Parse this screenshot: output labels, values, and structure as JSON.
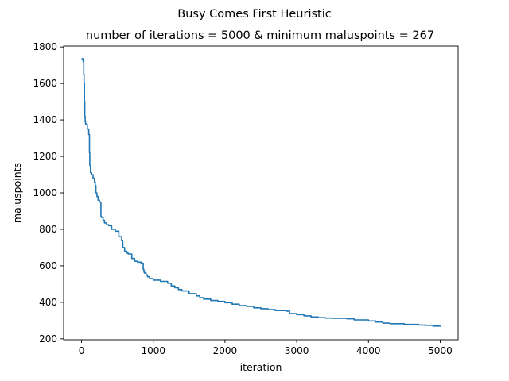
{
  "chart_data": {
    "type": "line",
    "suptitle": "Busy Comes First Heuristic",
    "title": "number of iterations = 5000 & minimum maluspoints = 267",
    "xlabel": "iteration",
    "ylabel": "maluspoints",
    "xlim": [
      -250,
      5250
    ],
    "ylim": [
      195,
      1805
    ],
    "xticks": [
      0,
      1000,
      2000,
      3000,
      4000,
      5000
    ],
    "yticks": [
      200,
      400,
      600,
      800,
      1000,
      1200,
      1400,
      1600,
      1800
    ],
    "grid": false,
    "line_color": "#1f77b4",
    "series": [
      {
        "x": [
          0,
          20,
          22,
          30,
          35,
          40,
          45,
          50,
          55,
          60,
          80,
          100,
          110,
          115,
          125,
          140,
          160,
          180,
          190,
          200,
          215,
          230,
          250,
          270,
          280,
          300,
          320,
          350,
          380,
          420,
          470,
          520,
          560,
          575,
          600,
          630,
          650,
          700,
          740,
          780,
          830,
          860,
          870,
          880,
          900,
          920,
          950,
          1000,
          1100,
          1200,
          1250,
          1300,
          1350,
          1400,
          1500,
          1600,
          1650,
          1700,
          1800,
          1900,
          2000,
          2100,
          2200,
          2300,
          2400,
          2500,
          2600,
          2700,
          2850,
          2900,
          3000,
          3100,
          3200,
          3300,
          3400,
          3500,
          3700,
          3800,
          4000,
          4100,
          4200,
          4300,
          4500,
          4700,
          4800,
          4900,
          5000
        ],
        "values": [
          1735,
          1735,
          1720,
          1650,
          1600,
          1500,
          1420,
          1390,
          1380,
          1375,
          1350,
          1320,
          1220,
          1150,
          1110,
          1100,
          1080,
          1060,
          1040,
          1000,
          980,
          960,
          950,
          870,
          865,
          850,
          835,
          825,
          820,
          800,
          790,
          760,
          740,
          700,
          680,
          670,
          665,
          640,
          625,
          620,
          615,
          580,
          565,
          560,
          550,
          540,
          530,
          522,
          515,
          505,
          490,
          480,
          470,
          462,
          448,
          435,
          425,
          418,
          410,
          405,
          398,
          390,
          382,
          378,
          370,
          365,
          360,
          355,
          352,
          338,
          333,
          326,
          320,
          316,
          314,
          313,
          310,
          304,
          298,
          292,
          286,
          283,
          279,
          276,
          274,
          270,
          267
        ]
      }
    ]
  }
}
